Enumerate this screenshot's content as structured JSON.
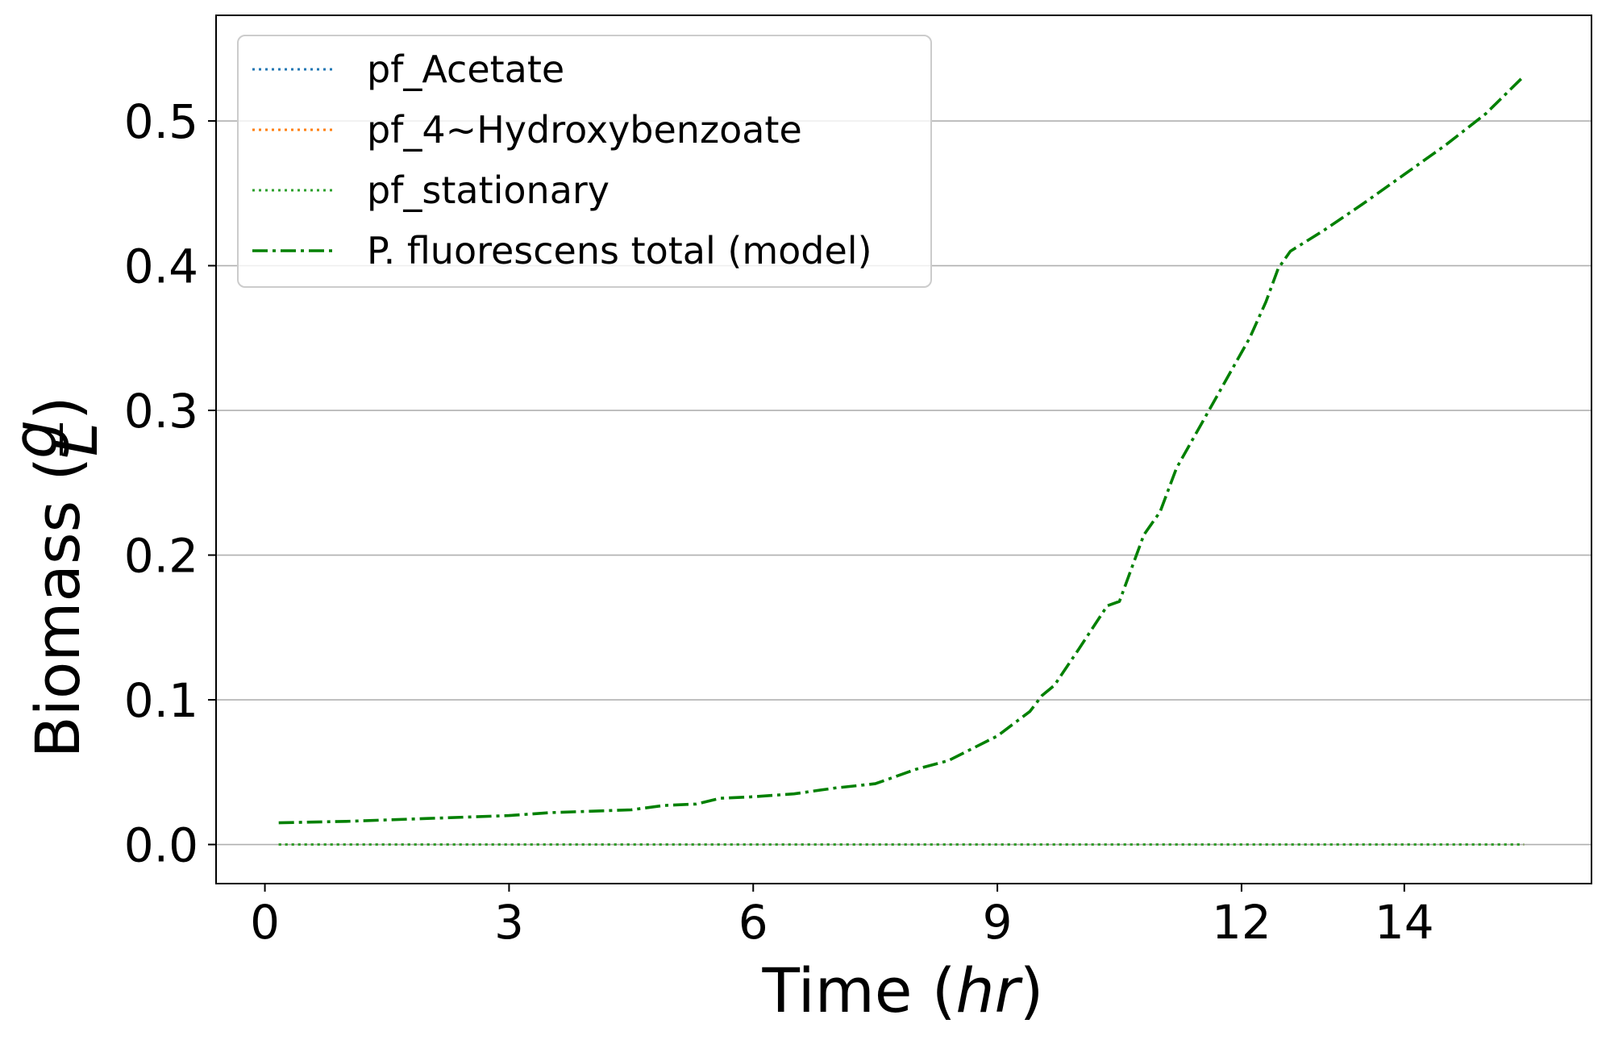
{
  "chart_data": {
    "type": "line",
    "title": "",
    "xlabel": {
      "prefix": "Time (",
      "italic": "hr",
      "suffix": ")"
    },
    "ylabel": {
      "prefix": "Biomass (",
      "frac_num": "g",
      "frac_den": "L",
      "suffix": ")"
    },
    "xlim": [
      -0.6,
      16.3
    ],
    "ylim": [
      -0.027,
      0.573
    ],
    "xticks": [
      0,
      3,
      6,
      9,
      12,
      14
    ],
    "xtick_labels": [
      "0",
      "3",
      "6",
      "9",
      "12",
      "14"
    ],
    "yticks": [
      0.0,
      0.1,
      0.2,
      0.3,
      0.4,
      0.5
    ],
    "ytick_labels": [
      "0.0",
      "0.1",
      "0.2",
      "0.3",
      "0.4",
      "0.5"
    ],
    "grid": "y",
    "legend_position": "top-left",
    "series": [
      {
        "name": "pf_Acetate",
        "color": "#1f77b4",
        "style": "dotted",
        "x": [
          0.17,
          15.47
        ],
        "y": [
          0.0,
          0.0
        ]
      },
      {
        "name": "pf_4~Hydroxybenzoate",
        "color": "#ff7f0e",
        "style": "dotted",
        "x": [
          0.17,
          15.47
        ],
        "y": [
          0.0,
          0.0
        ]
      },
      {
        "name": "pf_stationary",
        "color": "#2ca02c",
        "style": "dotted",
        "x": [
          0.17,
          15.47
        ],
        "y": [
          0.0,
          0.0
        ]
      },
      {
        "name": "P. fluorescens total (model)",
        "color": "#008000",
        "style": "dashdot",
        "x": [
          0.17,
          1.0,
          2.0,
          3.0,
          3.5,
          4.5,
          4.9,
          5.3,
          5.6,
          6.0,
          6.5,
          7.0,
          7.5,
          8.0,
          8.4,
          9.0,
          9.4,
          9.55,
          9.7,
          10.0,
          10.35,
          10.5,
          10.8,
          11.0,
          11.2,
          11.5,
          11.8,
          12.1,
          12.3,
          12.45,
          12.6,
          13.0,
          13.5,
          14.0,
          14.5,
          15.0,
          15.47
        ],
        "y": [
          0.015,
          0.016,
          0.018,
          0.02,
          0.022,
          0.024,
          0.027,
          0.028,
          0.032,
          0.033,
          0.035,
          0.039,
          0.042,
          0.052,
          0.058,
          0.075,
          0.092,
          0.103,
          0.11,
          0.135,
          0.165,
          0.168,
          0.214,
          0.23,
          0.26,
          0.29,
          0.32,
          0.35,
          0.375,
          0.398,
          0.41,
          0.424,
          0.443,
          0.463,
          0.483,
          0.505,
          0.531
        ]
      }
    ]
  }
}
